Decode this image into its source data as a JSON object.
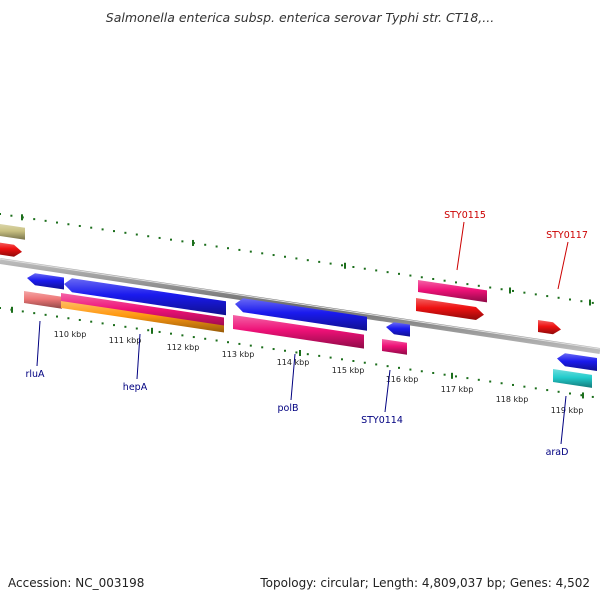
{
  "title": "Salmonella enterica subsp. enterica serovar Typhi str. CT18,...",
  "footer": {
    "accession": "Accession: NC_003198",
    "topology": "Topology: circular; Length: 4,809,037 bp; Genes: 4,502"
  },
  "scale": {
    "tick_labels": [
      "110 kbp",
      "111 kbp",
      "112 kbp",
      "113 kbp",
      "114 kbp",
      "115 kbp",
      "116 kbp",
      "117 kbp",
      "118 kbp",
      "119 kbp"
    ]
  },
  "gene_labels": [
    {
      "name": "rluA",
      "color": "#000080",
      "strand": "reverse"
    },
    {
      "name": "hepA",
      "color": "#000080",
      "strand": "reverse"
    },
    {
      "name": "polB",
      "color": "#000080",
      "strand": "reverse"
    },
    {
      "name": "STY0114",
      "color": "#000080",
      "strand": "reverse"
    },
    {
      "name": "araD",
      "color": "#000080",
      "strand": "reverse"
    },
    {
      "name": "STY0115",
      "color": "#cc0000",
      "strand": "forward"
    },
    {
      "name": "STY0117",
      "color": "#cc0000",
      "strand": "forward"
    }
  ],
  "colors": {
    "reverse_cds": "#1a1aee",
    "forward_cds": "#ee1111",
    "pink_feature": "#ee1177",
    "salmon_feature": "#ee7777",
    "orange_feature": "#ff9911",
    "cyan_feature": "#22cccc",
    "olive_feature": "#c8c080",
    "ruler_green": "#1b6e1b"
  }
}
